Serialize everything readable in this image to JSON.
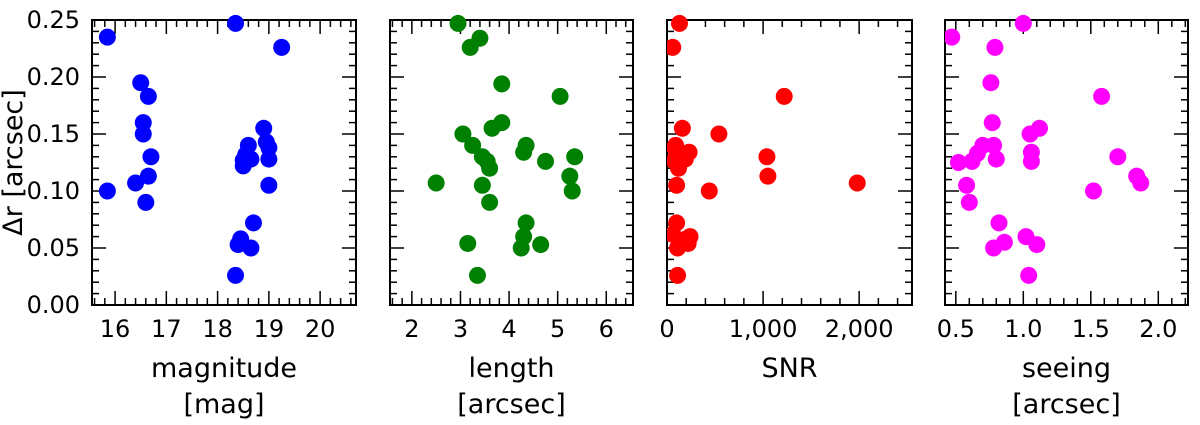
{
  "chart_data": [
    {
      "type": "scatter",
      "color": "#0000ff",
      "xlabel": [
        "magnitude",
        "[mag]"
      ],
      "ylabel": "Δr [arcsec]",
      "xlim": [
        15.55,
        20.7
      ],
      "ylim": [
        0.0,
        0.25
      ],
      "xticks": [
        16,
        17,
        18,
        19,
        20
      ],
      "xtick_labels": [
        "16",
        "17",
        "18",
        "19",
        "20"
      ],
      "yticks": [
        0.0,
        0.05,
        0.1,
        0.15,
        0.2,
        0.25
      ],
      "ytick_labels": [
        "0.00",
        "0.05",
        "0.10",
        "0.15",
        "0.20",
        "0.25"
      ],
      "x": [
        15.85,
        15.85,
        16.4,
        16.5,
        16.55,
        16.55,
        16.6,
        16.65,
        16.65,
        16.7,
        18.35,
        18.35,
        18.4,
        18.45,
        18.5,
        18.5,
        18.55,
        18.6,
        18.65,
        18.65,
        18.7,
        18.9,
        18.95,
        19.0,
        19.0,
        19.0,
        19.25
      ],
      "y": [
        0.235,
        0.1,
        0.107,
        0.195,
        0.16,
        0.15,
        0.09,
        0.183,
        0.113,
        0.13,
        0.247,
        0.026,
        0.053,
        0.058,
        0.127,
        0.122,
        0.132,
        0.14,
        0.05,
        0.128,
        0.072,
        0.155,
        0.143,
        0.138,
        0.128,
        0.105,
        0.226
      ]
    },
    {
      "type": "scatter",
      "color": "#008000",
      "xlabel": [
        "length",
        "[arcsec]"
      ],
      "xlim": [
        1.55,
        6.55
      ],
      "ylim": [
        0.0,
        0.25
      ],
      "xticks": [
        2,
        3,
        4,
        5,
        6
      ],
      "xtick_labels": [
        "2",
        "3",
        "4",
        "5",
        "6"
      ],
      "yticks": [
        0.0,
        0.05,
        0.1,
        0.15,
        0.2,
        0.25
      ],
      "x": [
        2.5,
        2.95,
        3.05,
        3.15,
        3.2,
        3.25,
        3.35,
        3.4,
        3.45,
        3.45,
        3.55,
        3.6,
        3.6,
        3.65,
        3.85,
        3.85,
        4.25,
        4.3,
        4.3,
        4.35,
        4.35,
        4.65,
        4.75,
        5.05,
        5.25,
        5.3,
        5.35
      ],
      "y": [
        0.107,
        0.247,
        0.15,
        0.054,
        0.226,
        0.14,
        0.026,
        0.234,
        0.13,
        0.105,
        0.126,
        0.12,
        0.09,
        0.155,
        0.194,
        0.16,
        0.05,
        0.06,
        0.134,
        0.072,
        0.14,
        0.053,
        0.126,
        0.183,
        0.113,
        0.1,
        0.13
      ]
    },
    {
      "type": "scatter",
      "color": "#ff0000",
      "xlabel": [
        "SNR",
        ""
      ],
      "xlim": [
        0,
        2550
      ],
      "ylim": [
        0.0,
        0.25
      ],
      "xticks": [
        0,
        1000,
        2000
      ],
      "xtick_labels": [
        "0",
        "1,000",
        "2,000"
      ],
      "yticks": [
        0.0,
        0.05,
        0.1,
        0.15,
        0.2,
        0.25
      ],
      "x": [
        60,
        80,
        90,
        100,
        100,
        110,
        110,
        120,
        130,
        130,
        140,
        160,
        170,
        190,
        200,
        220,
        230,
        240,
        440,
        540,
        1040,
        1050,
        1220,
        1980,
        80,
        90,
        60
      ],
      "y": [
        0.226,
        0.126,
        0.14,
        0.105,
        0.072,
        0.05,
        0.026,
        0.12,
        0.247,
        0.134,
        0.13,
        0.155,
        0.055,
        0.128,
        0.058,
        0.054,
        0.134,
        0.06,
        0.1,
        0.15,
        0.13,
        0.113,
        0.183,
        0.107,
        0.138,
        0.129,
        0.062
      ]
    },
    {
      "type": "scatter",
      "color": "#ff00ff",
      "xlabel": [
        "seeing",
        "[arcsec]"
      ],
      "xlim": [
        0.42,
        2.22
      ],
      "ylim": [
        0.0,
        0.25
      ],
      "xticks": [
        0.5,
        1.0,
        1.5,
        2.0
      ],
      "xtick_labels": [
        "0.5",
        "1.0",
        "1.5",
        "2.0"
      ],
      "yticks": [
        0.0,
        0.05,
        0.1,
        0.15,
        0.2,
        0.25
      ],
      "x": [
        0.47,
        0.52,
        0.58,
        0.6,
        0.62,
        0.66,
        0.7,
        0.76,
        0.77,
        0.78,
        0.78,
        0.79,
        0.8,
        0.82,
        0.86,
        1.0,
        1.02,
        1.04,
        1.05,
        1.06,
        1.06,
        1.1,
        1.12,
        1.52,
        1.58,
        1.7,
        1.84,
        1.87
      ],
      "y": [
        0.235,
        0.125,
        0.105,
        0.09,
        0.126,
        0.133,
        0.14,
        0.195,
        0.16,
        0.14,
        0.05,
        0.226,
        0.128,
        0.072,
        0.055,
        0.247,
        0.06,
        0.026,
        0.15,
        0.134,
        0.126,
        0.053,
        0.155,
        0.1,
        0.183,
        0.13,
        0.113,
        0.107
      ]
    }
  ]
}
